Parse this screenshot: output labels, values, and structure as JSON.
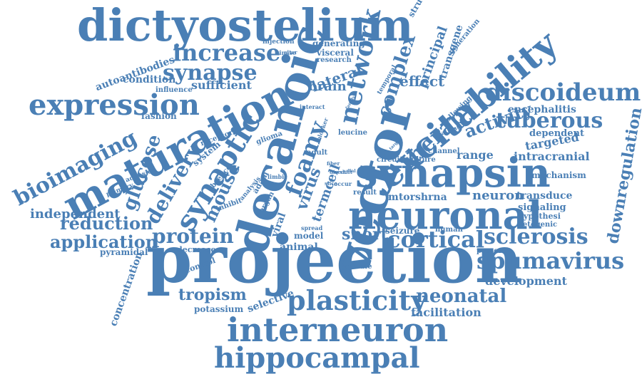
{
  "palette": {
    "word_color": "#4a7fb5",
    "background": "#ffffff"
  },
  "words": [
    "dictyostelium",
    "decanoic",
    "projection",
    "vector",
    "maturation",
    "synapsin",
    "excitability",
    "neuronal",
    "interneuron",
    "hippocampal",
    "expression",
    "bioimaging",
    "discoideum",
    "synaptic",
    "network",
    "plasticity",
    "increase",
    "synapse",
    "complex",
    "tuberous",
    "spumavirus",
    "cortical",
    "sclerosis",
    "therapy",
    "protein",
    "foamy",
    "neonatal",
    "delivery",
    "downregulation",
    "mouse",
    "application",
    "reduction",
    "activity",
    "glucose",
    "independent",
    "short",
    "virus",
    "tropism",
    "neuron",
    "lateral",
    "brain",
    "termcell",
    "effect",
    "principal",
    "transgene",
    "sufficient",
    "condition",
    "autoantibodies",
    "fashion",
    "influence",
    "encephalitis",
    "dependent",
    "targeted",
    "intracranial",
    "mechanism",
    "transduce",
    "signaling",
    "hypothesi",
    "ketogenic",
    "range",
    "development",
    "presence",
    "facilitation",
    "selective",
    "potassium",
    "concentration",
    "pyramidal",
    "decrease",
    "control",
    "inhibit",
    "animal",
    "model",
    "viral",
    "seizure",
    "human",
    "mtor",
    "shrna",
    "circuit",
    "culture",
    "channel",
    "leucine",
    "result",
    "granule",
    "adult",
    "glioma",
    "system",
    "receptor",
    "absence",
    "analysis",
    "adam",
    "organ",
    "limbic",
    "blocker",
    "interact",
    "primary",
    "adhesion",
    "generation",
    "following",
    "patient",
    "structure",
    "temporal",
    "generating",
    "visceral",
    "research",
    "injection",
    "spread",
    "direct",
    "occur",
    "slice",
    "fiber",
    "shift",
    "dial",
    "target",
    "family",
    "kinase",
    "alter"
  ]
}
